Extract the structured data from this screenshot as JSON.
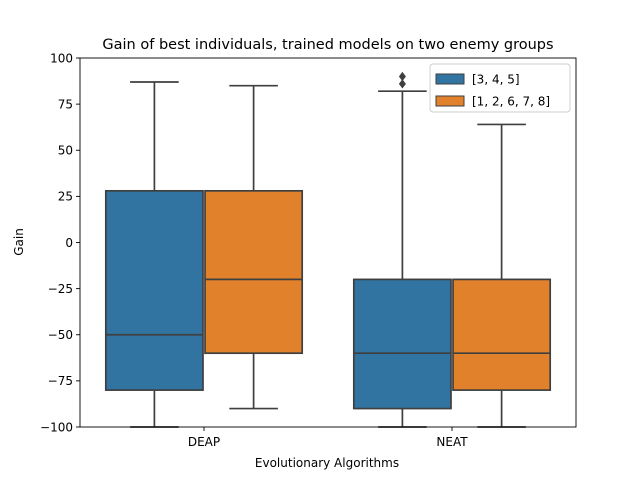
{
  "chart_data": {
    "type": "box",
    "title": "Gain of best individuals, trained models on two enemy groups",
    "xlabel": "Evolutionary Algorithms",
    "ylabel": "Gain",
    "ylim": [
      -100,
      100
    ],
    "yticks": [
      -100,
      -75,
      -50,
      -25,
      0,
      25,
      50,
      75,
      100
    ],
    "categories": [
      "DEAP",
      "NEAT"
    ],
    "legend_position": "top-right",
    "series": [
      {
        "name": "[3, 4, 5]",
        "color": "#3274a1",
        "boxes": [
          {
            "whisker_low": -100,
            "q1": -80,
            "median": -50,
            "q3": 28,
            "whisker_high": 87,
            "outliers": []
          },
          {
            "whisker_low": -100,
            "q1": -90,
            "median": -60,
            "q3": -20,
            "whisker_high": 82,
            "outliers": [
              86,
              90
            ]
          }
        ]
      },
      {
        "name": "[1, 2, 6, 7, 8]",
        "color": "#e1812c",
        "boxes": [
          {
            "whisker_low": -90,
            "q1": -60,
            "median": -20,
            "q3": 28,
            "whisker_high": 85,
            "outliers": []
          },
          {
            "whisker_low": -100,
            "q1": -80,
            "median": -60,
            "q3": -20,
            "whisker_high": 64,
            "outliers": []
          }
        ]
      }
    ]
  }
}
